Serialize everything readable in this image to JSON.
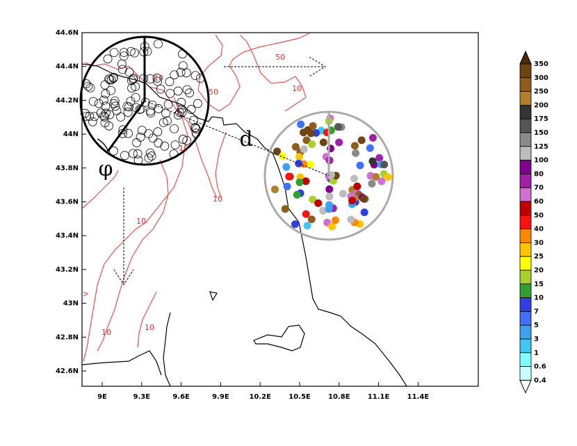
{
  "map": {
    "lon_labels": [
      "9E",
      "9.3E",
      "9.6E",
      "9.9E",
      "10.2E",
      "10.5E",
      "10.8E",
      "11.1E",
      "11.4E"
    ],
    "lat_labels": [
      "44.6N",
      "44.4N",
      "44.2N",
      "44N",
      "43.8N",
      "43.6N",
      "43.4N",
      "43.2N",
      "43N",
      "42.8N",
      "42.6N"
    ],
    "contour_labels": [
      "50",
      "50",
      "10",
      "10",
      "10",
      "10",
      "10",
      "10",
      "10"
    ],
    "symbols": [
      "d",
      "φ"
    ]
  },
  "colorbar": {
    "labels": [
      "350",
      "300",
      "250",
      "200",
      "175",
      "150",
      "125",
      "100",
      "80",
      "70",
      "60",
      "50",
      "40",
      "30",
      "25",
      "20",
      "15",
      "10",
      "7",
      "5",
      "3",
      "1",
      "0.6",
      "0.4"
    ],
    "colors": [
      "#4a2a08",
      "#6e4412",
      "#8e5c1c",
      "#b0802e",
      "#333333",
      "#555555",
      "#8a8a8a",
      "#bcbcbc",
      "#800090",
      "#a020a8",
      "#d070d0",
      "#c00000",
      "#ff1010",
      "#ff8800",
      "#ffc400",
      "#ffff00",
      "#a8d030",
      "#30a030",
      "#3040e0",
      "#4070ff",
      "#40a0f0",
      "#40c8f0",
      "#80ffff",
      "#c8ffff",
      "#ffffff"
    ]
  }
}
